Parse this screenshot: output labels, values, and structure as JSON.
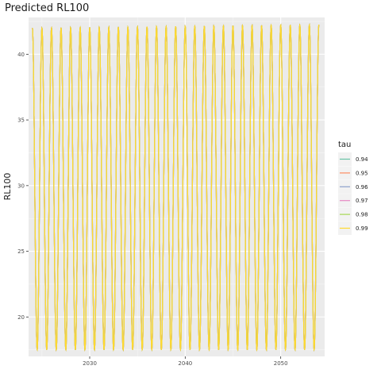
{
  "chart_data": {
    "type": "line",
    "title": "Predicted RL100",
    "xlabel": "",
    "ylabel": "RL100",
    "xlim": [
      2023.6,
      2054.6
    ],
    "ylim": [
      17.0,
      42.8
    ],
    "x_ticks": [
      2030,
      2040,
      2050
    ],
    "x_tick_labels": [
      "2030",
      "2040",
      "2050"
    ],
    "y_ticks": [
      20,
      25,
      30,
      35,
      40
    ],
    "y_tick_labels": [
      "20",
      "25",
      "30",
      "35",
      "40"
    ],
    "grid": true,
    "legend": {
      "title": "tau",
      "position": "right"
    },
    "pattern": {
      "x_start": 2024.0,
      "x_end": 2054.0,
      "period_years": 1.0,
      "y_min": 17.5,
      "y_max_start": 42.0,
      "y_max_end": 42.25
    },
    "series": [
      {
        "name": "0.94",
        "color": "#66c2a5"
      },
      {
        "name": "0.95",
        "color": "#fc8d62"
      },
      {
        "name": "0.96",
        "color": "#8da0cb"
      },
      {
        "name": "0.97",
        "color": "#e78ac3"
      },
      {
        "name": "0.98",
        "color": "#a6d854"
      },
      {
        "name": "0.99",
        "color": "#ffd92f"
      }
    ]
  }
}
